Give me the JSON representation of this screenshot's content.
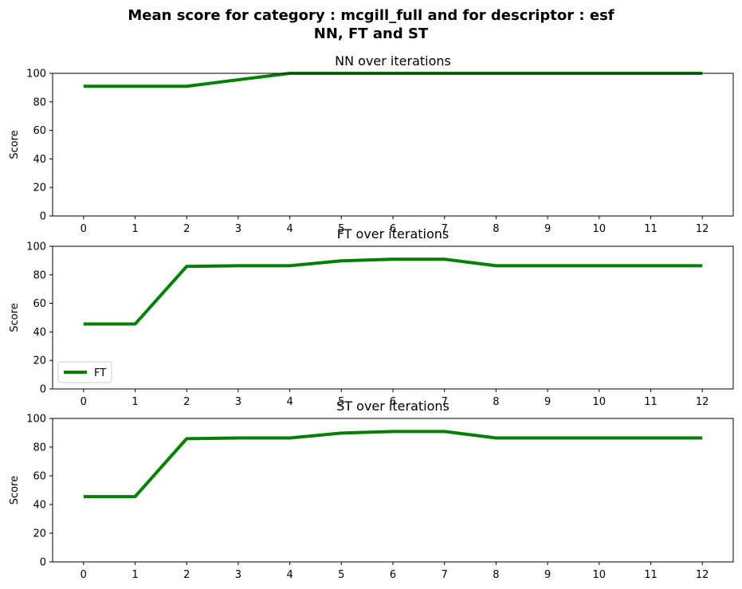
{
  "figure": {
    "title_line1": "Mean score for category : mcgill_full and for descriptor : esf",
    "title_line2": "NN, FT and ST"
  },
  "chart_data": [
    {
      "type": "line",
      "title": "NN over iterations",
      "xlabel": "",
      "ylabel": "Score",
      "x": [
        0,
        1,
        2,
        3,
        4,
        5,
        6,
        7,
        8,
        9,
        10,
        11,
        12
      ],
      "series": [
        {
          "values": [
            90.9,
            90.9,
            90.9,
            95.5,
            100,
            100,
            100,
            100,
            100,
            100,
            100,
            100,
            100
          ],
          "color": "#008000"
        }
      ],
      "xlim": [
        -0.6,
        12.6
      ],
      "ylim": [
        0,
        100
      ],
      "xticks": [
        "0",
        "1",
        "2",
        "3",
        "4",
        "5",
        "6",
        "7",
        "8",
        "9",
        "10",
        "11",
        "12"
      ],
      "yticks": [
        "0",
        "20",
        "40",
        "60",
        "80",
        "100"
      ],
      "grid": false,
      "legend": null
    },
    {
      "type": "line",
      "title": "FT over iterations",
      "xlabel": "",
      "ylabel": "Score",
      "x": [
        0,
        1,
        2,
        3,
        4,
        5,
        6,
        7,
        8,
        9,
        10,
        11,
        12
      ],
      "series": [
        {
          "name": "FT",
          "values": [
            45.5,
            45.5,
            85.9,
            86.4,
            86.4,
            89.8,
            90.9,
            90.9,
            86.4,
            86.4,
            86.4,
            86.4,
            86.4
          ],
          "color": "#008000"
        }
      ],
      "xlim": [
        -0.6,
        12.6
      ],
      "ylim": [
        0,
        100
      ],
      "xticks": [
        "0",
        "1",
        "2",
        "3",
        "4",
        "5",
        "6",
        "7",
        "8",
        "9",
        "10",
        "11",
        "12"
      ],
      "yticks": [
        "0",
        "20",
        "40",
        "60",
        "80",
        "100"
      ],
      "grid": false,
      "legend": "lower-left"
    },
    {
      "type": "line",
      "title": "ST over iterations",
      "xlabel": "",
      "ylabel": "Score",
      "x": [
        0,
        1,
        2,
        3,
        4,
        5,
        6,
        7,
        8,
        9,
        10,
        11,
        12
      ],
      "series": [
        {
          "values": [
            45.5,
            45.5,
            85.9,
            86.4,
            86.4,
            89.8,
            90.9,
            90.9,
            86.4,
            86.4,
            86.4,
            86.4,
            86.4
          ],
          "color": "#008000"
        }
      ],
      "xlim": [
        -0.6,
        12.6
      ],
      "ylim": [
        0,
        100
      ],
      "xticks": [
        "0",
        "1",
        "2",
        "3",
        "4",
        "5",
        "6",
        "7",
        "8",
        "9",
        "10",
        "11",
        "12"
      ],
      "yticks": [
        "0",
        "20",
        "40",
        "60",
        "80",
        "100"
      ],
      "grid": false,
      "legend": null
    }
  ]
}
